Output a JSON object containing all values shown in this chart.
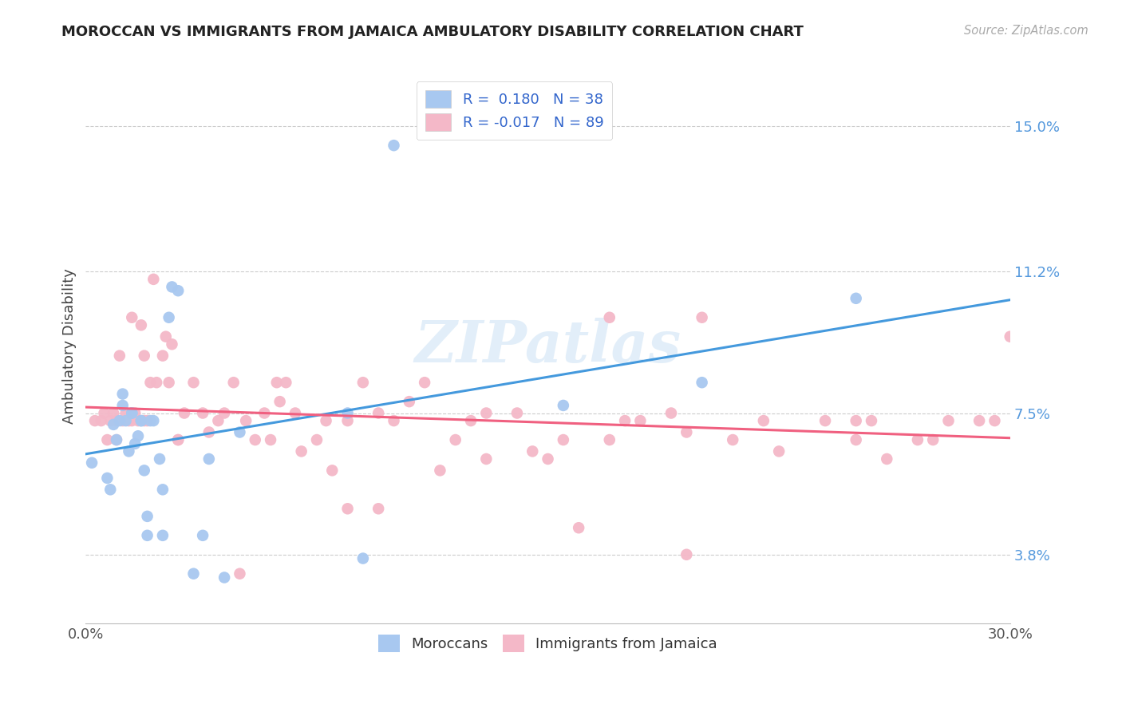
{
  "title": "MOROCCAN VS IMMIGRANTS FROM JAMAICA AMBULATORY DISABILITY CORRELATION CHART",
  "source": "Source: ZipAtlas.com",
  "ylabel": "Ambulatory Disability",
  "xlim": [
    0.0,
    0.3
  ],
  "ylim": [
    0.02,
    0.165
  ],
  "moroccan_R": 0.18,
  "moroccan_N": 38,
  "jamaica_R": -0.017,
  "jamaica_N": 89,
  "moroccan_color": "#a8c8f0",
  "jamaica_color": "#f4b8c8",
  "moroccan_line_color": "#4499dd",
  "jamaica_line_color": "#f06080",
  "watermark": "ZIPatlas",
  "ytick_positions": [
    0.038,
    0.075,
    0.112,
    0.15
  ],
  "ytick_labels": [
    "3.8%",
    "7.5%",
    "11.2%",
    "15.0%"
  ],
  "moroccan_x": [
    0.002,
    0.007,
    0.008,
    0.009,
    0.01,
    0.011,
    0.012,
    0.012,
    0.013,
    0.014,
    0.015,
    0.015,
    0.016,
    0.017,
    0.018,
    0.018,
    0.019,
    0.02,
    0.02,
    0.021,
    0.022,
    0.024,
    0.025,
    0.025,
    0.027,
    0.028,
    0.03,
    0.035,
    0.038,
    0.04,
    0.045,
    0.05,
    0.085,
    0.09,
    0.1,
    0.155,
    0.2,
    0.25
  ],
  "moroccan_y": [
    0.062,
    0.058,
    0.055,
    0.072,
    0.068,
    0.073,
    0.08,
    0.077,
    0.073,
    0.065,
    0.075,
    0.075,
    0.067,
    0.069,
    0.073,
    0.073,
    0.06,
    0.048,
    0.043,
    0.073,
    0.073,
    0.063,
    0.055,
    0.043,
    0.1,
    0.108,
    0.107,
    0.033,
    0.043,
    0.063,
    0.032,
    0.07,
    0.075,
    0.037,
    0.145,
    0.077,
    0.083,
    0.105
  ],
  "jamaica_x": [
    0.003,
    0.005,
    0.006,
    0.007,
    0.008,
    0.009,
    0.01,
    0.01,
    0.011,
    0.012,
    0.013,
    0.014,
    0.015,
    0.015,
    0.016,
    0.017,
    0.018,
    0.019,
    0.019,
    0.02,
    0.021,
    0.022,
    0.023,
    0.025,
    0.026,
    0.027,
    0.028,
    0.03,
    0.032,
    0.035,
    0.038,
    0.04,
    0.043,
    0.045,
    0.048,
    0.052,
    0.055,
    0.058,
    0.06,
    0.062,
    0.063,
    0.065,
    0.068,
    0.07,
    0.075,
    0.078,
    0.08,
    0.085,
    0.09,
    0.095,
    0.1,
    0.105,
    0.11,
    0.115,
    0.12,
    0.125,
    0.13,
    0.14,
    0.145,
    0.15,
    0.155,
    0.16,
    0.17,
    0.175,
    0.18,
    0.19,
    0.195,
    0.2,
    0.21,
    0.22,
    0.225,
    0.24,
    0.25,
    0.255,
    0.26,
    0.27,
    0.275,
    0.28,
    0.29,
    0.295,
    0.3,
    0.13,
    0.085,
    0.05,
    0.25,
    0.17,
    0.095,
    0.03,
    0.195
  ],
  "jamaica_y": [
    0.073,
    0.073,
    0.075,
    0.068,
    0.073,
    0.075,
    0.073,
    0.068,
    0.09,
    0.073,
    0.075,
    0.073,
    0.073,
    0.1,
    0.075,
    0.073,
    0.098,
    0.073,
    0.09,
    0.073,
    0.083,
    0.11,
    0.083,
    0.09,
    0.095,
    0.083,
    0.093,
    0.068,
    0.075,
    0.083,
    0.075,
    0.07,
    0.073,
    0.075,
    0.083,
    0.073,
    0.068,
    0.075,
    0.068,
    0.083,
    0.078,
    0.083,
    0.075,
    0.065,
    0.068,
    0.073,
    0.06,
    0.073,
    0.083,
    0.075,
    0.073,
    0.078,
    0.083,
    0.06,
    0.068,
    0.073,
    0.075,
    0.075,
    0.065,
    0.063,
    0.068,
    0.045,
    0.1,
    0.073,
    0.073,
    0.075,
    0.07,
    0.1,
    0.068,
    0.073,
    0.065,
    0.073,
    0.068,
    0.073,
    0.063,
    0.068,
    0.068,
    0.073,
    0.073,
    0.073,
    0.095,
    0.063,
    0.05,
    0.033,
    0.073,
    0.068,
    0.05,
    0.068,
    0.038
  ]
}
